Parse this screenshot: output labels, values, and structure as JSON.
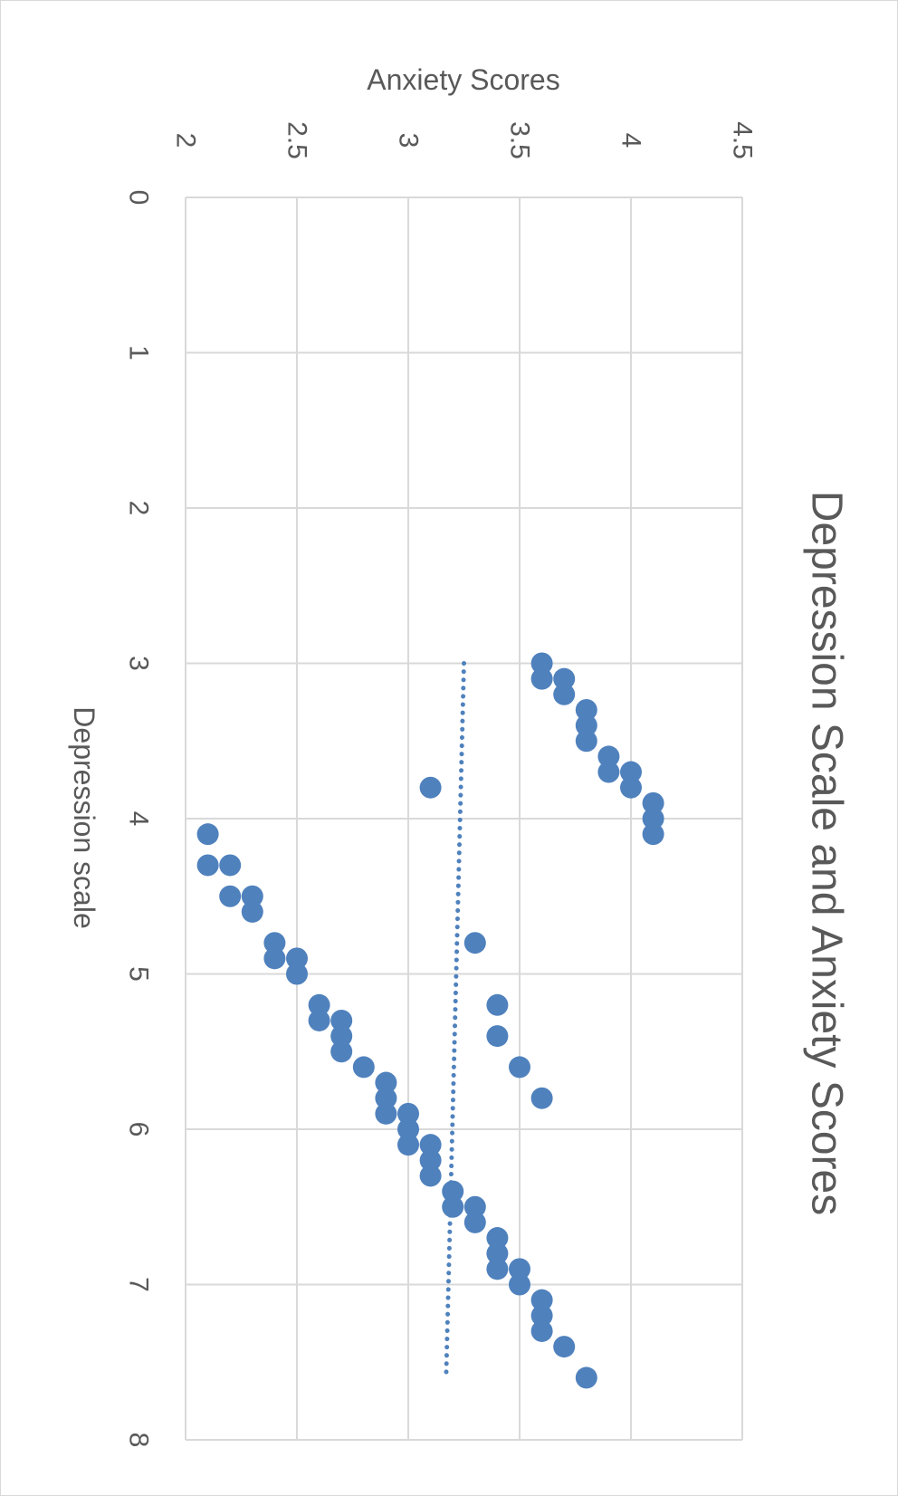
{
  "chart_data": {
    "type": "scatter",
    "orientation": "rotated 90° clockwise",
    "title": "Depression Scale and Anxiety Scores",
    "xlabel": "Depression scale",
    "ylabel": "Anxiety Scores",
    "xlim": [
      0,
      8
    ],
    "ylim": [
      2,
      4.5
    ],
    "x_ticks": [
      "0",
      "1",
      "2",
      "3",
      "4",
      "5",
      "6",
      "7",
      "8"
    ],
    "y_ticks": [
      "2",
      "2.5",
      "3",
      "3.5",
      "4",
      "4.5"
    ],
    "grid": true,
    "legend": "none",
    "marker_color": "#4f81bd",
    "trendline": {
      "style": "dotted",
      "color": "#4f81bd",
      "x": [
        3.0,
        7.6
      ],
      "y": [
        3.25,
        3.17
      ]
    },
    "series": [
      {
        "points": [
          [
            3.0,
            3.6
          ],
          [
            3.1,
            3.6
          ],
          [
            3.1,
            3.7
          ],
          [
            3.2,
            3.7
          ],
          [
            3.3,
            3.8
          ],
          [
            3.4,
            3.8
          ],
          [
            3.5,
            3.8
          ],
          [
            3.6,
            3.9
          ],
          [
            3.7,
            3.9
          ],
          [
            3.7,
            4.0
          ],
          [
            3.8,
            4.0
          ],
          [
            3.8,
            3.1
          ],
          [
            3.9,
            4.1
          ],
          [
            4.0,
            4.1
          ],
          [
            4.1,
            4.1
          ],
          [
            4.1,
            2.1
          ],
          [
            4.3,
            2.1
          ],
          [
            4.3,
            2.2
          ],
          [
            4.5,
            2.2
          ],
          [
            4.5,
            2.3
          ],
          [
            4.6,
            2.3
          ],
          [
            4.8,
            2.4
          ],
          [
            4.8,
            3.3
          ],
          [
            4.9,
            2.4
          ],
          [
            4.9,
            2.5
          ],
          [
            5.0,
            2.5
          ],
          [
            5.2,
            2.6
          ],
          [
            5.2,
            3.4
          ],
          [
            5.3,
            2.6
          ],
          [
            5.3,
            2.7
          ],
          [
            5.4,
            2.7
          ],
          [
            5.4,
            3.4
          ],
          [
            5.5,
            2.7
          ],
          [
            5.6,
            2.8
          ],
          [
            5.6,
            3.5
          ],
          [
            5.7,
            2.9
          ],
          [
            5.8,
            2.9
          ],
          [
            5.8,
            3.6
          ],
          [
            5.9,
            2.9
          ],
          [
            5.9,
            3.0
          ],
          [
            6.0,
            3.0
          ],
          [
            6.1,
            3.0
          ],
          [
            6.1,
            3.1
          ],
          [
            6.2,
            3.1
          ],
          [
            6.3,
            3.1
          ],
          [
            6.4,
            3.2
          ],
          [
            6.5,
            3.2
          ],
          [
            6.5,
            3.3
          ],
          [
            6.6,
            3.3
          ],
          [
            6.7,
            3.4
          ],
          [
            6.8,
            3.4
          ],
          [
            6.9,
            3.4
          ],
          [
            6.9,
            3.5
          ],
          [
            7.0,
            3.5
          ],
          [
            7.1,
            3.6
          ],
          [
            7.2,
            3.6
          ],
          [
            7.3,
            3.6
          ],
          [
            7.4,
            3.7
          ],
          [
            7.6,
            3.8
          ]
        ]
      }
    ]
  }
}
